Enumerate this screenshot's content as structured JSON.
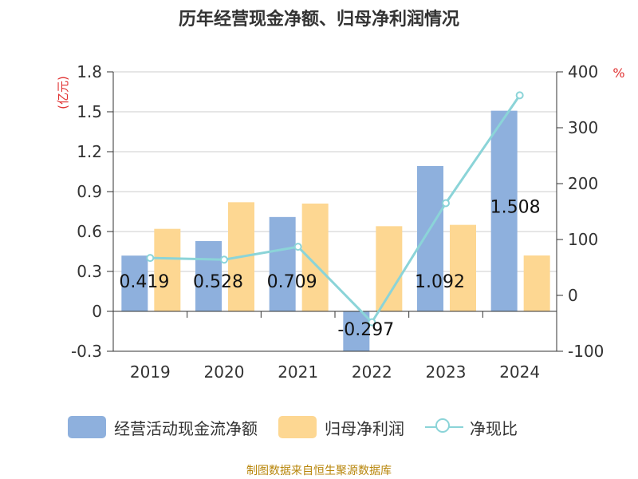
{
  "title": "历年经营现金净额、归母净利润情况",
  "source": "制图数据来自恒生聚源数据库",
  "colors": {
    "bar1": "#8eb0dd",
    "bar2": "#fdd792",
    "line": "#8bd4d8",
    "unit_left": "#e03030",
    "unit_right": "#e03030"
  },
  "chart_data": {
    "type": "bar",
    "categories": [
      "2019",
      "2020",
      "2021",
      "2022",
      "2023",
      "2024"
    ],
    "series": [
      {
        "name": "经营活动现金流净额",
        "type": "bar",
        "axis": "left",
        "values": [
          0.419,
          0.528,
          0.709,
          -0.297,
          1.092,
          1.508
        ],
        "labels": [
          "0.419",
          "0.528",
          "0.709",
          "-0.297",
          "1.092",
          "1.508"
        ]
      },
      {
        "name": "归母净利润",
        "type": "bar",
        "axis": "left",
        "values": [
          0.62,
          0.82,
          0.81,
          0.64,
          0.65,
          0.42
        ]
      },
      {
        "name": "净现比",
        "type": "line",
        "axis": "right",
        "values": [
          67,
          64,
          87,
          -48,
          165,
          358
        ]
      }
    ],
    "y_left": {
      "unit": "(亿元)",
      "min": -0.3,
      "max": 1.8,
      "ticks": [
        "-0.3",
        "0",
        "0.3",
        "0.6",
        "0.9",
        "1.2",
        "1.5",
        "1.8"
      ]
    },
    "y_right": {
      "unit": "%",
      "min": -100,
      "max": 400,
      "ticks": [
        "-100",
        "0",
        "100",
        "200",
        "300",
        "400"
      ]
    },
    "grid": true,
    "legend_position": "bottom"
  }
}
